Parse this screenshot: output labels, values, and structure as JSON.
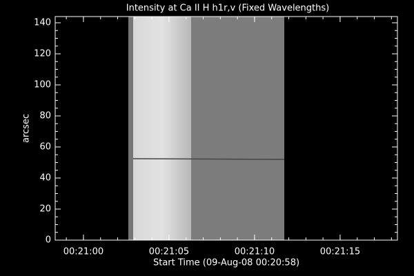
{
  "chart_data": {
    "type": "image",
    "title": "Intensity at Ca II H h1r,v (Fixed Wavelengths)",
    "x_label": "Start Time (09-Aug-08 00:20:58)",
    "y_label": "arcsec",
    "xlim": [
      0.35,
      20.35
    ],
    "xticks": [
      {
        "value": 2,
        "label": "00:21:00"
      },
      {
        "value": 7,
        "label": "00:21:05"
      },
      {
        "value": 12,
        "label": "00:21:10"
      },
      {
        "value": 17,
        "label": "00:21:15"
      }
    ],
    "ylim": [
      0,
      144
    ],
    "yticks": [
      0,
      20,
      40,
      60,
      80,
      100,
      120,
      140
    ]
  }
}
